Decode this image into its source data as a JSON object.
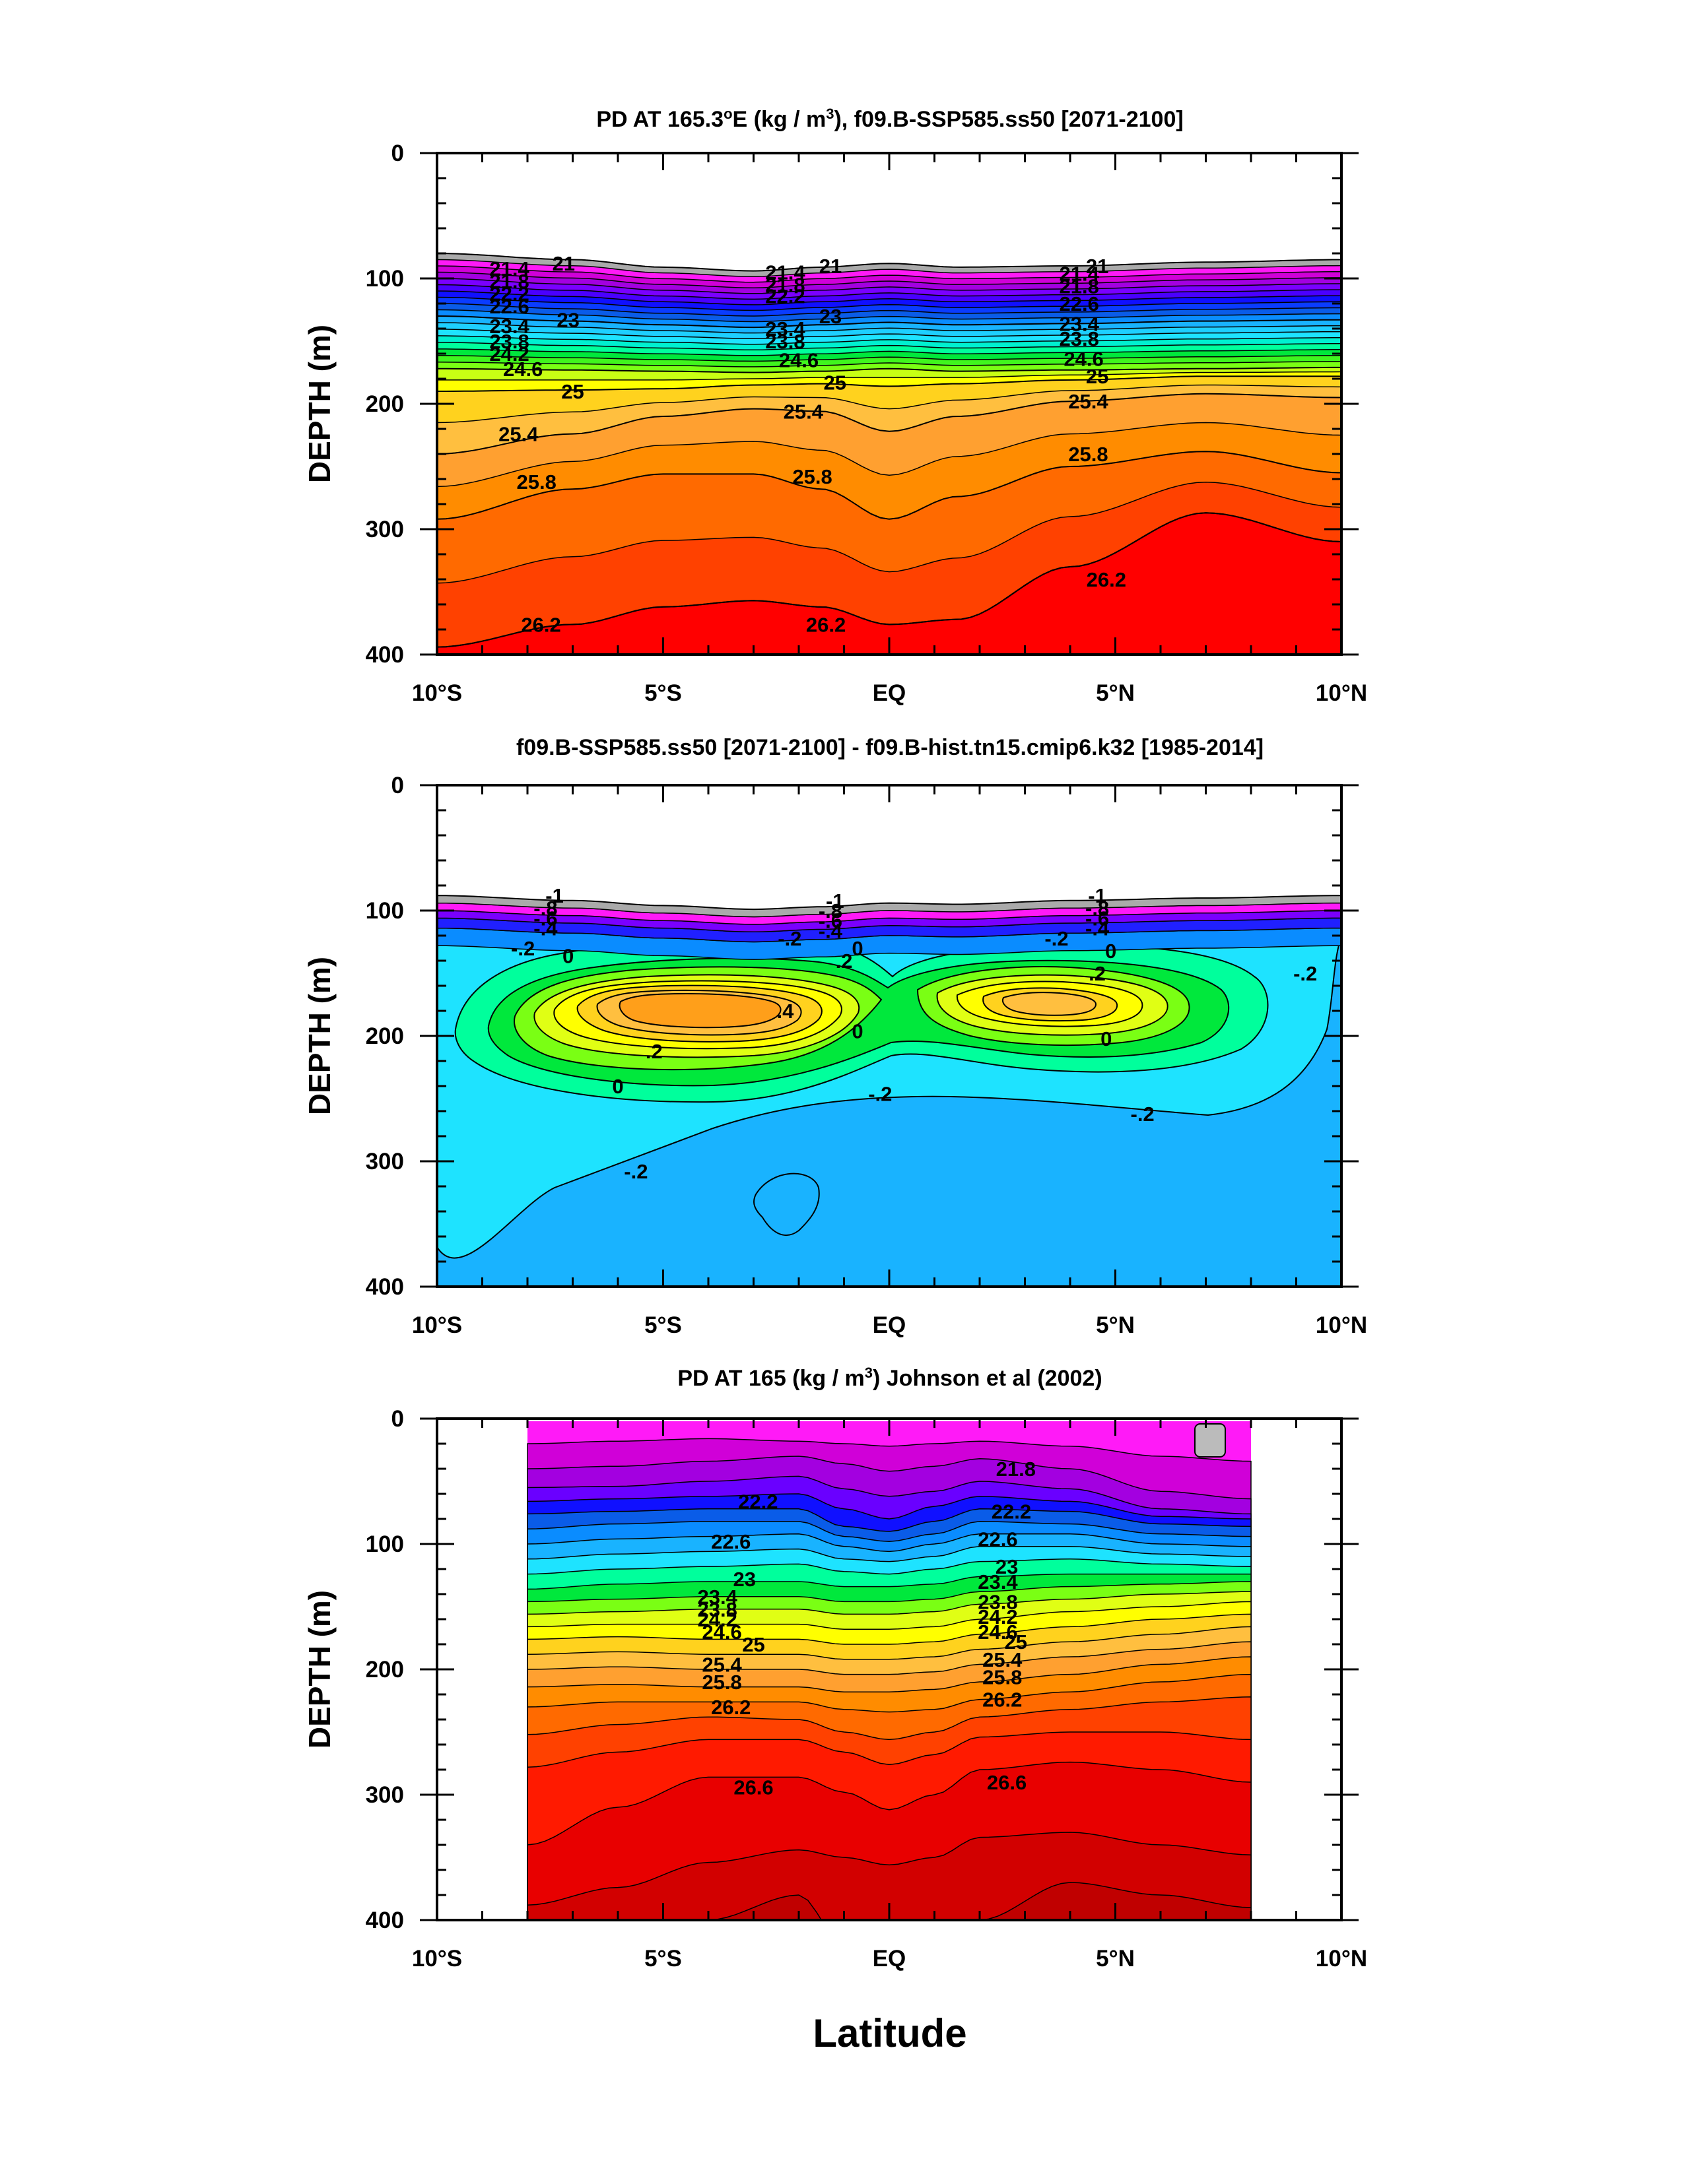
{
  "figure": {
    "xlabel": "Latitude"
  },
  "colors": {
    "rainbow_density": [
      "#aaaaaa",
      "#ff1af7",
      "#d000d8",
      "#a300e0",
      "#6a00ff",
      "#1010ff",
      "#0a5ce8",
      "#0a8cff",
      "#19b3ff",
      "#1ee3ff",
      "#00ff9c",
      "#00e83c",
      "#7aff14",
      "#e0ff14",
      "#ffff00",
      "#ffd21e",
      "#ffbf3f",
      "#ffa030",
      "#ff8c00",
      "#ff6a00",
      "#ff4100",
      "#ff1a00",
      "#e80000",
      "#c80000"
    ],
    "diff_fill_levels": [
      "#aaaaaa",
      "#ff1af7",
      "#7a00ff",
      "#2020ff",
      "#0a8cff",
      "#19b3ff",
      "#1ee3ff",
      "#00ff9c",
      "#00e83c",
      "#7aff14",
      "#e0ff14",
      "#ffff00",
      "#ffd21e",
      "#ffbf3f",
      "#ff8c1a"
    ],
    "line": "#000000",
    "background": "#ffffff"
  },
  "chart_data": [
    {
      "type": "contour",
      "title_main": "PD AT 165.3",
      "title_sup1": "o",
      "title_mid": "E (kg / m",
      "title_sup2": "3",
      "title_end": "), f09.B-SSP585.ss50 [2071-2100]",
      "ylabel": "DEPTH (m)",
      "xlim": [
        -10,
        10
      ],
      "ylim": [
        400,
        0
      ],
      "y_reversed": true,
      "x_ticks": [
        {
          "value": -10,
          "label": "10°S"
        },
        {
          "value": -5,
          "label": "5°S"
        },
        {
          "value": 0,
          "label": "EQ"
        },
        {
          "value": 5,
          "label": "5°N"
        },
        {
          "value": 10,
          "label": "10°N"
        }
      ],
      "y_ticks": [
        0,
        100,
        200,
        300,
        400
      ],
      "contour_levels": [
        21,
        21.2,
        21.4,
        21.6,
        21.8,
        22,
        22.2,
        22.4,
        22.6,
        22.8,
        23,
        23.2,
        23.4,
        23.6,
        23.8,
        24,
        24.2,
        24.4,
        24.6,
        24.8,
        25,
        25.2,
        25.4,
        25.6,
        25.8,
        26,
        26.2
      ],
      "isolines": [
        {
          "value": "21",
          "x": [
            -10,
            -7,
            -5,
            -3,
            -1.5,
            0,
            1.5,
            4,
            7,
            10
          ],
          "y": [
            80,
            85,
            91,
            94,
            91,
            88,
            91,
            90,
            87,
            85
          ]
        },
        {
          "value": "23",
          "x": [
            -10,
            -7,
            -5,
            -3,
            -1.5,
            0,
            1.5,
            4,
            7,
            10
          ],
          "y": [
            130,
            134,
            137,
            139,
            137,
            135,
            137,
            136,
            134,
            133
          ]
        },
        {
          "value": "24.6",
          "x": [
            -10,
            -7,
            -5,
            -3,
            -1.5,
            0,
            1.5,
            4,
            7,
            10
          ],
          "y": [
            172,
            173,
            174,
            175,
            174,
            172,
            174,
            173,
            172,
            171
          ]
        },
        {
          "value": "25",
          "x": [
            -10,
            -7,
            -5,
            -3,
            -1.5,
            0,
            1.5,
            4,
            7,
            10
          ],
          "y": [
            190,
            189,
            188,
            185,
            184,
            186,
            184,
            181,
            178,
            178
          ]
        },
        {
          "value": "25.4",
          "x": [
            -10,
            -7,
            -5,
            -3,
            -1.5,
            0,
            1.5,
            4,
            7,
            10
          ],
          "y": [
            240,
            224,
            210,
            204,
            206,
            222,
            210,
            198,
            192,
            195
          ]
        },
        {
          "value": "25.8",
          "x": [
            -10,
            -7,
            -5,
            -3,
            -1.5,
            0,
            1.5,
            4,
            7,
            10
          ],
          "y": [
            292,
            268,
            256,
            256,
            268,
            292,
            274,
            250,
            238,
            255
          ]
        },
        {
          "value": "26.2",
          "x": [
            -10,
            -7,
            -5,
            -3,
            -1.5,
            0,
            1.5,
            4,
            7,
            10
          ],
          "y": [
            394,
            376,
            362,
            357,
            362,
            376,
            372,
            330,
            287,
            310
          ]
        }
      ],
      "contour_labels": [
        {
          "text": "21",
          "x": -7.2,
          "y": 88
        },
        {
          "text": "21",
          "x": -1.3,
          "y": 90
        },
        {
          "text": "21",
          "x": 4.6,
          "y": 90
        },
        {
          "text": "21.4",
          "x": -8.4,
          "y": 92
        },
        {
          "text": "21.8",
          "x": -8.4,
          "y": 102
        },
        {
          "text": "22.2",
          "x": -8.4,
          "y": 112
        },
        {
          "text": "22.6",
          "x": -8.4,
          "y": 122
        },
        {
          "text": "23",
          "x": -7.1,
          "y": 133
        },
        {
          "text": "23.4",
          "x": -8.4,
          "y": 138
        },
        {
          "text": "23.8",
          "x": -8.4,
          "y": 150
        },
        {
          "text": "24.2",
          "x": -8.4,
          "y": 160
        },
        {
          "text": "24.6",
          "x": -8.1,
          "y": 172
        },
        {
          "text": "21.4",
          "x": -2.3,
          "y": 95
        },
        {
          "text": "21.8",
          "x": -2.3,
          "y": 105
        },
        {
          "text": "22.2",
          "x": -2.3,
          "y": 114
        },
        {
          "text": "23",
          "x": -1.3,
          "y": 130
        },
        {
          "text": "23.4",
          "x": -2.3,
          "y": 140
        },
        {
          "text": "23.8",
          "x": -2.3,
          "y": 150
        },
        {
          "text": "24.6",
          "x": -2.0,
          "y": 165
        },
        {
          "text": "21.4",
          "x": 4.2,
          "y": 96
        },
        {
          "text": "21.8",
          "x": 4.2,
          "y": 106
        },
        {
          "text": "22.6",
          "x": 4.2,
          "y": 120
        },
        {
          "text": "23.4",
          "x": 4.2,
          "y": 136
        },
        {
          "text": "23.8",
          "x": 4.2,
          "y": 148
        },
        {
          "text": "24.6",
          "x": 4.3,
          "y": 164
        },
        {
          "text": "25",
          "x": -7.0,
          "y": 190
        },
        {
          "text": "25",
          "x": -1.2,
          "y": 183
        },
        {
          "text": "25",
          "x": 4.6,
          "y": 178
        },
        {
          "text": "25.4",
          "x": -8.2,
          "y": 224
        },
        {
          "text": "25.4",
          "x": -1.9,
          "y": 206
        },
        {
          "text": "25.4",
          "x": 4.4,
          "y": 198
        },
        {
          "text": "25.8",
          "x": -7.8,
          "y": 262
        },
        {
          "text": "25.8",
          "x": -1.7,
          "y": 258
        },
        {
          "text": "25.8",
          "x": 4.4,
          "y": 240
        },
        {
          "text": "26.2",
          "x": -7.7,
          "y": 376
        },
        {
          "text": "26.2",
          "x": -1.4,
          "y": 376
        },
        {
          "text": "26.2",
          "x": 4.8,
          "y": 340
        }
      ]
    },
    {
      "type": "contour",
      "title": "f09.B-SSP585.ss50 [2071-2100] - f09.B-hist.tn15.cmip6.k32 [1985-2014]",
      "ylabel": "DEPTH (m)",
      "xlim": [
        -10,
        10
      ],
      "ylim": [
        400,
        0
      ],
      "y_reversed": true,
      "x_ticks": [
        {
          "value": -10,
          "label": "10°S"
        },
        {
          "value": -5,
          "label": "5°S"
        },
        {
          "value": 0,
          "label": "EQ"
        },
        {
          "value": 5,
          "label": "5°N"
        },
        {
          "value": 10,
          "label": "10°N"
        }
      ],
      "y_ticks": [
        0,
        100,
        200,
        300,
        400
      ],
      "contour_levels": [
        -1,
        -0.8,
        -0.6,
        -0.4,
        -0.2,
        0,
        0.2,
        0.4,
        0.6
      ],
      "contour_labels": [
        {
          "text": "-1",
          "x": -7.4,
          "y": 88
        },
        {
          "text": "-.8",
          "x": -7.6,
          "y": 98
        },
        {
          "text": "-.6",
          "x": -7.6,
          "y": 106
        },
        {
          "text": "-.4",
          "x": -7.6,
          "y": 114
        },
        {
          "text": "-1",
          "x": -1.2,
          "y": 92
        },
        {
          "text": "-.8",
          "x": -1.3,
          "y": 100
        },
        {
          "text": "-.6",
          "x": -1.3,
          "y": 108
        },
        {
          "text": "-.4",
          "x": -1.3,
          "y": 116
        },
        {
          "text": "-1",
          "x": 4.6,
          "y": 88
        },
        {
          "text": "-.8",
          "x": 4.6,
          "y": 98
        },
        {
          "text": "-.6",
          "x": 4.6,
          "y": 106
        },
        {
          "text": "-.4",
          "x": 4.6,
          "y": 114
        },
        {
          "text": "-.2",
          "x": -8.1,
          "y": 130
        },
        {
          "text": "0",
          "x": -7.1,
          "y": 136
        },
        {
          "text": "-.2",
          "x": -2.2,
          "y": 122
        },
        {
          "text": "-.2",
          "x": 3.7,
          "y": 122
        },
        {
          "text": "0",
          "x": 4.9,
          "y": 132
        },
        {
          "text": "-.2",
          "x": 9.2,
          "y": 150
        },
        {
          "text": ".2",
          "x": -1.0,
          "y": 140
        },
        {
          "text": "0",
          "x": -0.7,
          "y": 130
        },
        {
          "text": ".2",
          "x": 4.6,
          "y": 150
        },
        {
          "text": ".4",
          "x": -2.3,
          "y": 180
        },
        {
          "text": ".2",
          "x": -5.2,
          "y": 212
        },
        {
          "text": "0",
          "x": -0.7,
          "y": 196
        },
        {
          "text": "0",
          "x": 4.8,
          "y": 202
        },
        {
          "text": "0",
          "x": -6.0,
          "y": 240
        },
        {
          "text": "-.2",
          "x": -0.2,
          "y": 246
        },
        {
          "text": "-.2",
          "x": 5.6,
          "y": 262
        },
        {
          "text": "-.2",
          "x": -5.6,
          "y": 308
        }
      ]
    },
    {
      "type": "contour",
      "title_main": "PD AT 165 (kg / m",
      "title_sup": "3",
      "title_end": ") Johnson et al (2002)",
      "ylabel": "DEPTH (m)",
      "xlim": [
        -10,
        10
      ],
      "ylim": [
        400,
        0
      ],
      "y_reversed": true,
      "data_xrange": [
        -8,
        8
      ],
      "x_ticks": [
        {
          "value": -10,
          "label": "10°S"
        },
        {
          "value": -5,
          "label": "5°S"
        },
        {
          "value": 0,
          "label": "EQ"
        },
        {
          "value": 5,
          "label": "5°N"
        },
        {
          "value": 10,
          "label": "10°N"
        }
      ],
      "y_ticks": [
        0,
        100,
        200,
        300,
        400
      ],
      "contour_levels": [
        21.8,
        22.2,
        22.6,
        23,
        23.4,
        23.8,
        24.2,
        24.6,
        25,
        25.4,
        25.8,
        26.2,
        26.6
      ],
      "contour_labels": [
        {
          "text": "21.8",
          "x": 2.8,
          "y": 40
        },
        {
          "text": "22.2",
          "x": -2.9,
          "y": 66
        },
        {
          "text": "22.2",
          "x": 2.7,
          "y": 74
        },
        {
          "text": "22.6",
          "x": -3.5,
          "y": 98
        },
        {
          "text": "22.6",
          "x": 2.4,
          "y": 96
        },
        {
          "text": "23",
          "x": -3.2,
          "y": 128
        },
        {
          "text": "23",
          "x": 2.6,
          "y": 118
        },
        {
          "text": "23.4",
          "x": -3.8,
          "y": 142
        },
        {
          "text": "23.4",
          "x": 2.4,
          "y": 130
        },
        {
          "text": "23.8",
          "x": -3.8,
          "y": 152
        },
        {
          "text": "23.8",
          "x": 2.4,
          "y": 146
        },
        {
          "text": "24.2",
          "x": -3.8,
          "y": 160
        },
        {
          "text": "24.2",
          "x": 2.4,
          "y": 158
        },
        {
          "text": "24.6",
          "x": -3.7,
          "y": 170
        },
        {
          "text": "24.6",
          "x": 2.4,
          "y": 170
        },
        {
          "text": "25",
          "x": -3.0,
          "y": 180
        },
        {
          "text": "25",
          "x": 2.8,
          "y": 178
        },
        {
          "text": "25.4",
          "x": -3.7,
          "y": 196
        },
        {
          "text": "25.4",
          "x": 2.5,
          "y": 192
        },
        {
          "text": "25.8",
          "x": -3.7,
          "y": 210
        },
        {
          "text": "25.8",
          "x": 2.5,
          "y": 206
        },
        {
          "text": "26.2",
          "x": -3.5,
          "y": 230
        },
        {
          "text": "26.2",
          "x": 2.5,
          "y": 224
        },
        {
          "text": "26.6",
          "x": -3.0,
          "y": 294
        },
        {
          "text": "26.6",
          "x": 2.6,
          "y": 290
        }
      ]
    }
  ]
}
